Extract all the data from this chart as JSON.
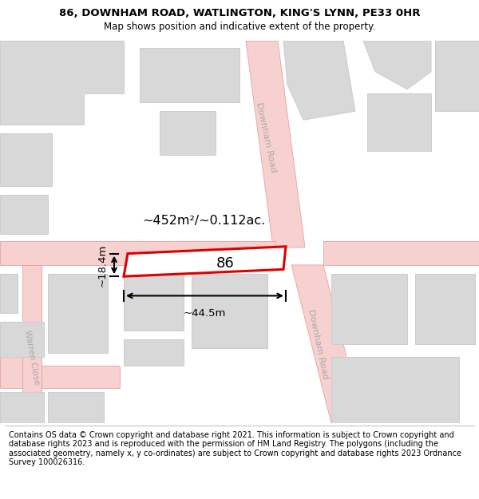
{
  "title": "86, DOWNHAM ROAD, WATLINGTON, KING'S LYNN, PE33 0HR",
  "subtitle": "Map shows position and indicative extent of the property.",
  "footer": "Contains OS data © Crown copyright and database right 2021. This information is subject to Crown copyright and database rights 2023 and is reproduced with the permission of HM Land Registry. The polygons (including the associated geometry, namely x, y co-ordinates) are subject to Crown copyright and database rights 2023 Ordnance Survey 100026316.",
  "area_text": "~452m²/~0.112ac.",
  "width_text": "~44.5m",
  "height_text": "~18.4m",
  "property_number": "86",
  "road_fill": "#f7d0d0",
  "road_edge": "#e8a0a0",
  "building_fill": "#d8d8d8",
  "building_edge": "#cccccc",
  "highlight_color": "#dd0000",
  "highlight_fill": "#ffffff",
  "road_label_color": "#aaaaaa",
  "title_fontsize": 9.5,
  "subtitle_fontsize": 8.5,
  "footer_fontsize": 7.0,
  "map_xlim": [
    0,
    600
  ],
  "map_ylim": [
    0,
    435
  ]
}
